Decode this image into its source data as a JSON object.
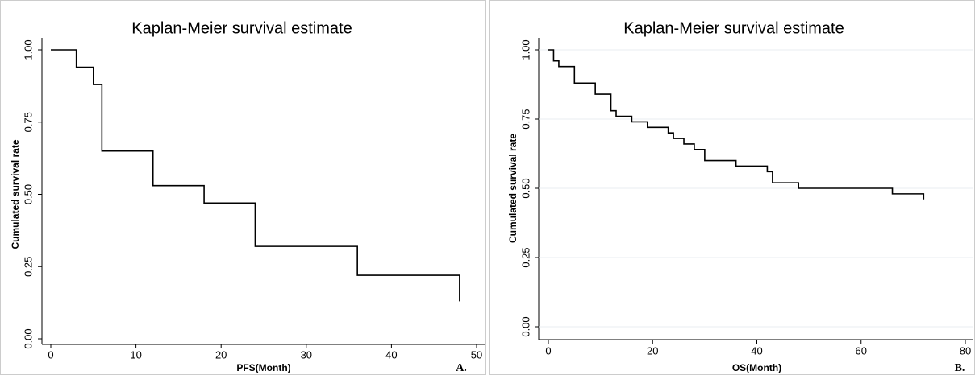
{
  "chart_data": [
    {
      "type": "step",
      "title": "Kaplan-Meier survival estimate",
      "x_label": "PFS(Month)",
      "y_label": "Cumulated survival rate",
      "panel_label": "A.",
      "x": [
        0,
        3,
        5,
        6,
        12,
        18,
        24,
        36,
        48
      ],
      "values": [
        1,
        0.94,
        0.88,
        0.65,
        0.53,
        0.47,
        0.32,
        0.22,
        0.13
      ],
      "color": "#000000",
      "grid": false,
      "xlim": [
        0,
        50
      ],
      "xticks": [
        0,
        10,
        20,
        30,
        40,
        50
      ],
      "ylim": [
        0,
        1
      ],
      "yticks": [
        {
          "value": 0,
          "label": "0.00"
        },
        {
          "value": 0.25,
          "label": "0.25"
        },
        {
          "value": 0.5,
          "label": "0.50"
        },
        {
          "value": 0.75,
          "label": "0.75"
        },
        {
          "value": 1,
          "label": "1.00"
        }
      ]
    },
    {
      "type": "step",
      "title": "Kaplan-Meier survival estimate",
      "x_label": "OS(Month)",
      "y_label": "Cumulated survival rate",
      "panel_label": "B.",
      "x": [
        0,
        1,
        2,
        5,
        9,
        12,
        13,
        16,
        19,
        23,
        24,
        26,
        28,
        30,
        36,
        42,
        43,
        48,
        66,
        72
      ],
      "values": [
        1,
        0.96,
        0.94,
        0.88,
        0.84,
        0.78,
        0.76,
        0.74,
        0.72,
        0.7,
        0.68,
        0.66,
        0.64,
        0.6,
        0.58,
        0.56,
        0.52,
        0.5,
        0.48,
        0.46
      ],
      "color": "#000000",
      "grid": true,
      "xlim": [
        0,
        80
      ],
      "xticks": [
        0,
        20,
        40,
        60,
        80
      ],
      "ylim": [
        0,
        1
      ],
      "yticks": [
        {
          "value": 0,
          "label": "0.00"
        },
        {
          "value": 0.25,
          "label": "0.25"
        },
        {
          "value": 0.5,
          "label": "0.50"
        },
        {
          "value": 0.75,
          "label": "0.75"
        },
        {
          "value": 1,
          "label": "1.00"
        }
      ]
    }
  ]
}
